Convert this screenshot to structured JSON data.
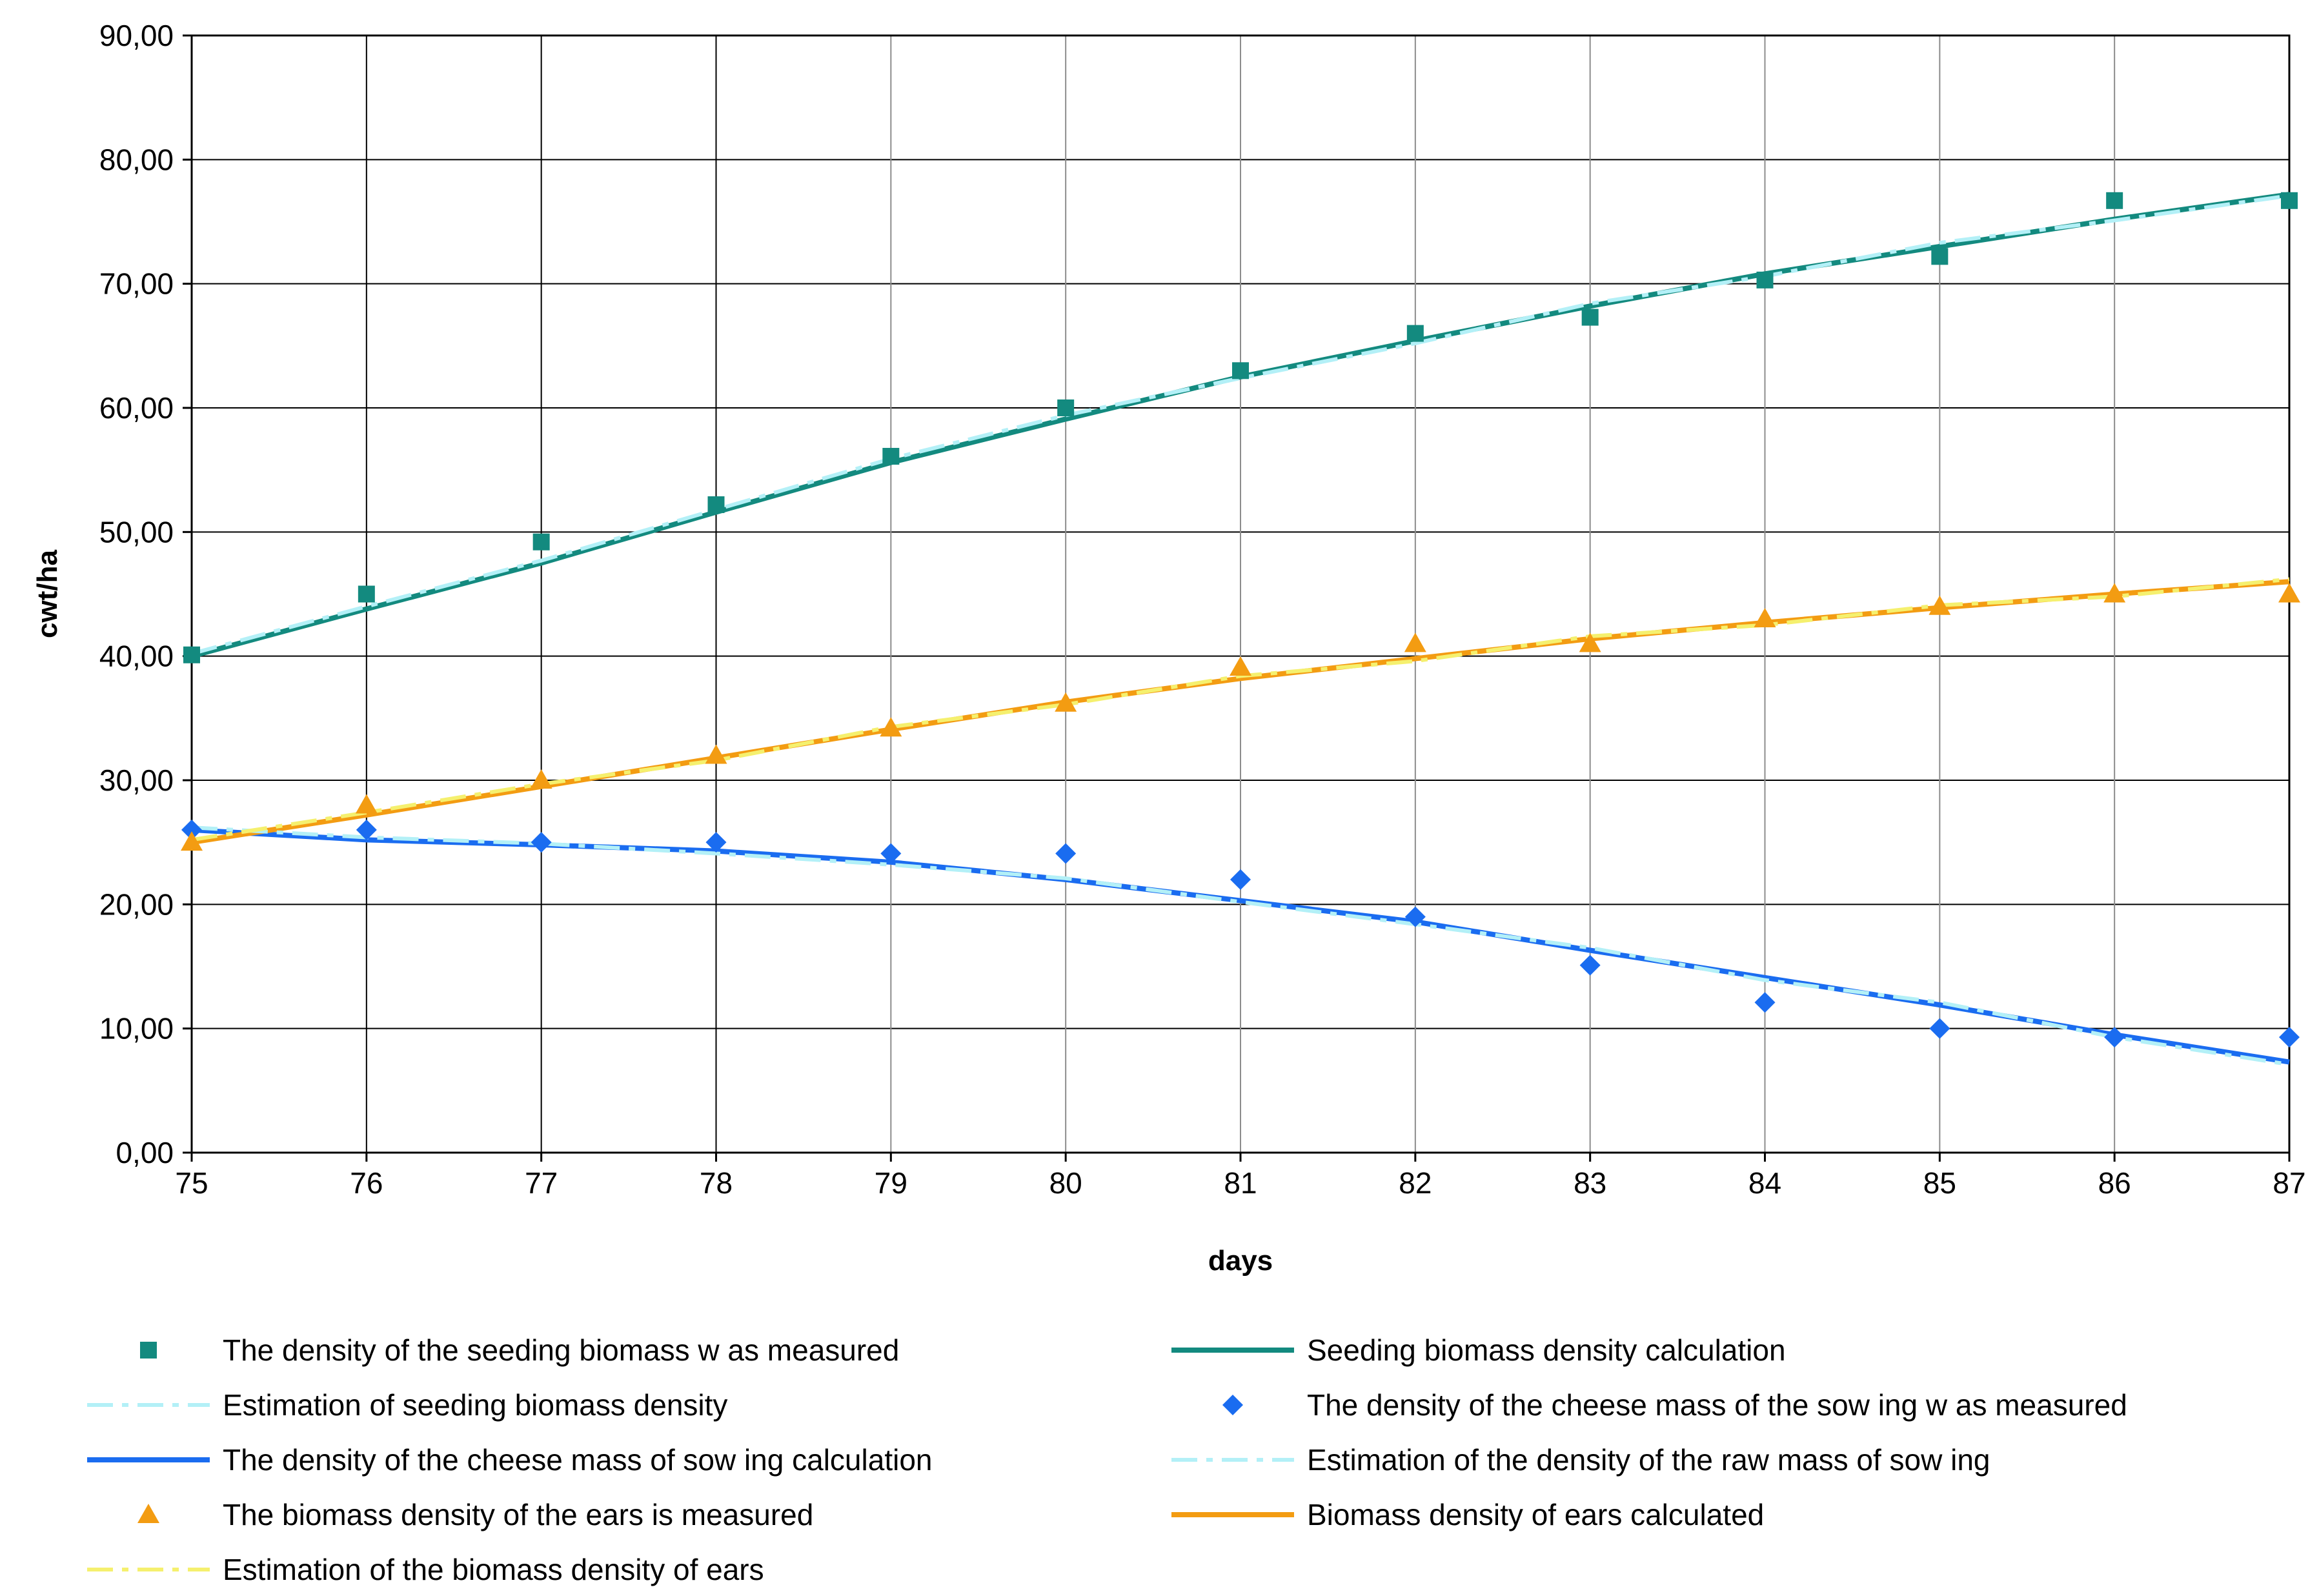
{
  "chart_data": {
    "type": "scatter",
    "xlabel": "days",
    "ylabel": "cwt/ha",
    "xlim": [
      75,
      87
    ],
    "ylim": [
      0,
      90
    ],
    "x_ticks": [
      "75",
      "76",
      "77",
      "78",
      "79",
      "80",
      "81",
      "82",
      "83",
      "84",
      "85",
      "86",
      "87"
    ],
    "y_ticks": [
      "0,00",
      "10,00",
      "20,00",
      "30,00",
      "40,00",
      "50,00",
      "60,00",
      "70,00",
      "80,00",
      "90,00"
    ],
    "grid": true,
    "legend_position": "bottom",
    "x": [
      75,
      76,
      77,
      78,
      79,
      80,
      81,
      82,
      83,
      84,
      85,
      86,
      87
    ],
    "series": [
      {
        "name": "The density of the seeding biomass w as measured",
        "kind": "markers",
        "marker": "square",
        "color": "#138a7f",
        "values": [
          40.1,
          45.0,
          49.2,
          52.2,
          56.1,
          60.0,
          63.0,
          66.0,
          67.3,
          70.3,
          72.2,
          76.7,
          76.7
        ]
      },
      {
        "name": "Seeding biomass density calculation",
        "kind": "line",
        "dash": "solid",
        "color": "#138a7f",
        "values": [
          40.0,
          43.8,
          47.5,
          51.6,
          55.6,
          59.1,
          62.5,
          65.4,
          68.2,
          70.8,
          73.0,
          75.2,
          77.2
        ]
      },
      {
        "name": "Estimation of seeding biomass density",
        "kind": "line",
        "dash": "dashdot",
        "color": "#b3f0f7",
        "values": [
          40.2,
          44.0,
          47.7,
          51.8,
          55.9,
          59.4,
          62.4,
          65.2,
          68.4,
          70.6,
          73.3,
          75.1,
          77.1
        ]
      },
      {
        "name": "The density of the cheese mass of the sow ing w as measured",
        "kind": "markers",
        "marker": "diamond",
        "color": "#1a6cf0",
        "values": [
          26.0,
          26.0,
          25.0,
          25.0,
          24.1,
          24.1,
          22.0,
          19.0,
          15.1,
          12.1,
          10.0,
          9.3,
          9.3
        ]
      },
      {
        "name": "The density of the cheese mass of sow ing calculation",
        "kind": "line",
        "dash": "solid",
        "color": "#1a6cf0",
        "values": [
          26.0,
          25.2,
          24.8,
          24.3,
          23.4,
          22.0,
          20.3,
          18.6,
          16.3,
          14.1,
          11.9,
          9.5,
          7.3
        ]
      },
      {
        "name": "Estimation of the density of the raw  mass of sow ing",
        "kind": "line",
        "dash": "dashdot",
        "color": "#b3f0f7",
        "values": [
          26.2,
          25.4,
          24.9,
          24.1,
          23.2,
          22.1,
          20.2,
          18.4,
          16.5,
          13.9,
          12.1,
          9.3,
          7.1
        ]
      },
      {
        "name": "The biomass density of the ears is measured",
        "kind": "markers",
        "marker": "triangle",
        "color": "#f39c12",
        "values": [
          25.0,
          28.0,
          30.0,
          32.0,
          34.2,
          36.2,
          39.1,
          41.0,
          41.0,
          43.0,
          44.0,
          45.0,
          45.0
        ]
      },
      {
        "name": "Biomass density of ears calculated",
        "kind": "line",
        "dash": "solid",
        "color": "#f39c12",
        "values": [
          25.0,
          27.2,
          29.5,
          31.8,
          34.1,
          36.3,
          38.2,
          39.8,
          41.4,
          42.7,
          43.9,
          45.0,
          46.0
        ]
      },
      {
        "name": "Estimation of the biomass density of ears",
        "kind": "line",
        "dash": "dashdot",
        "color": "#f5f06e",
        "values": [
          25.2,
          27.4,
          29.7,
          31.6,
          34.3,
          36.1,
          38.4,
          39.6,
          41.6,
          42.5,
          44.1,
          44.8,
          46.2
        ]
      }
    ]
  }
}
